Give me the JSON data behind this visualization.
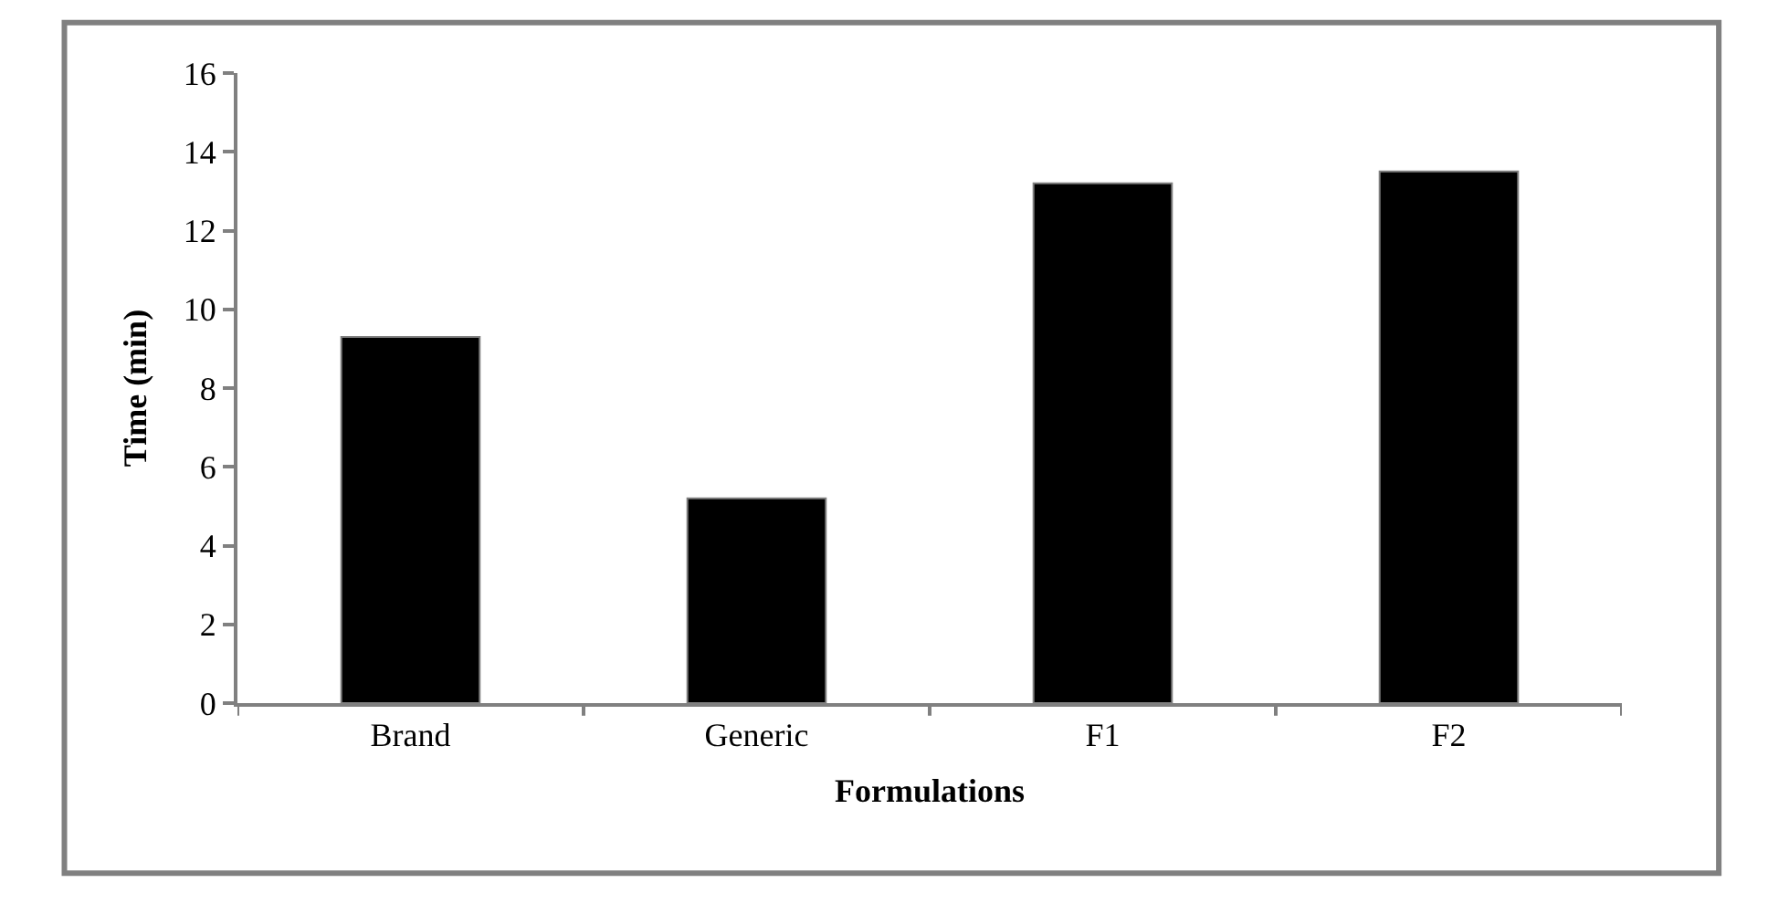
{
  "chart_data": {
    "type": "bar",
    "xlabel": "Formulations",
    "ylabel": "Time (min)",
    "categories": [
      "Brand",
      "Generic",
      "F1",
      "F2"
    ],
    "values": [
      9.3,
      5.2,
      13.2,
      13.5
    ],
    "color": "#000000",
    "ylim": [
      0,
      16
    ],
    "yticks": [
      0,
      2,
      4,
      6,
      8,
      10,
      12,
      14,
      16
    ]
  }
}
